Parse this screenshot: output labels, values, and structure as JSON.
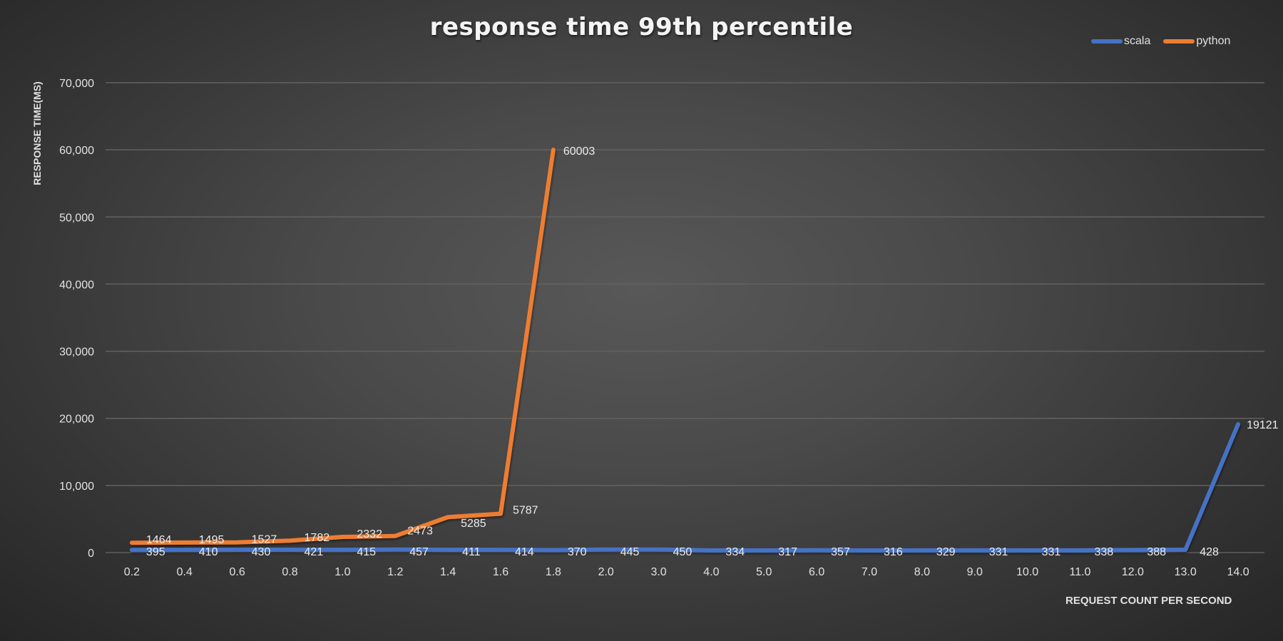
{
  "chart_data": {
    "type": "line",
    "title": "response time 99th percentile",
    "xlabel": "REQUEST COUNT PER SECOND",
    "ylabel": "RESPONSE TIME(MS)",
    "ylim": [
      0,
      70000
    ],
    "yticks": [
      "0",
      "10,000",
      "20,000",
      "30,000",
      "40,000",
      "50,000",
      "60,000",
      "70,000"
    ],
    "grid": true,
    "legend_position": "top-right",
    "categories": [
      "0.2",
      "0.4",
      "0.6",
      "0.8",
      "1.0",
      "1.2",
      "1.4",
      "1.6",
      "1.8",
      "2.0",
      "3.0",
      "4.0",
      "5.0",
      "6.0",
      "7.0",
      "8.0",
      "9.0",
      "10.0",
      "11.0",
      "12.0",
      "13.0",
      "14.0"
    ],
    "series": [
      {
        "name": "scala",
        "color": "#4472c4",
        "values": [
          395,
          410,
          430,
          421,
          415,
          457,
          411,
          414,
          370,
          445,
          450,
          334,
          317,
          357,
          316,
          329,
          331,
          331,
          338,
          388,
          428,
          19121
        ]
      },
      {
        "name": "python",
        "color": "#ed7d31",
        "values": [
          1464,
          1495,
          1527,
          1782,
          2332,
          2473,
          5285,
          5787,
          60003,
          null,
          null,
          null,
          null,
          null,
          null,
          null,
          null,
          null,
          null,
          null,
          null,
          null
        ]
      }
    ]
  },
  "legend": {
    "items": [
      {
        "label": "scala",
        "color": "#4472c4"
      },
      {
        "label": "python",
        "color": "#ed7d31"
      }
    ]
  }
}
